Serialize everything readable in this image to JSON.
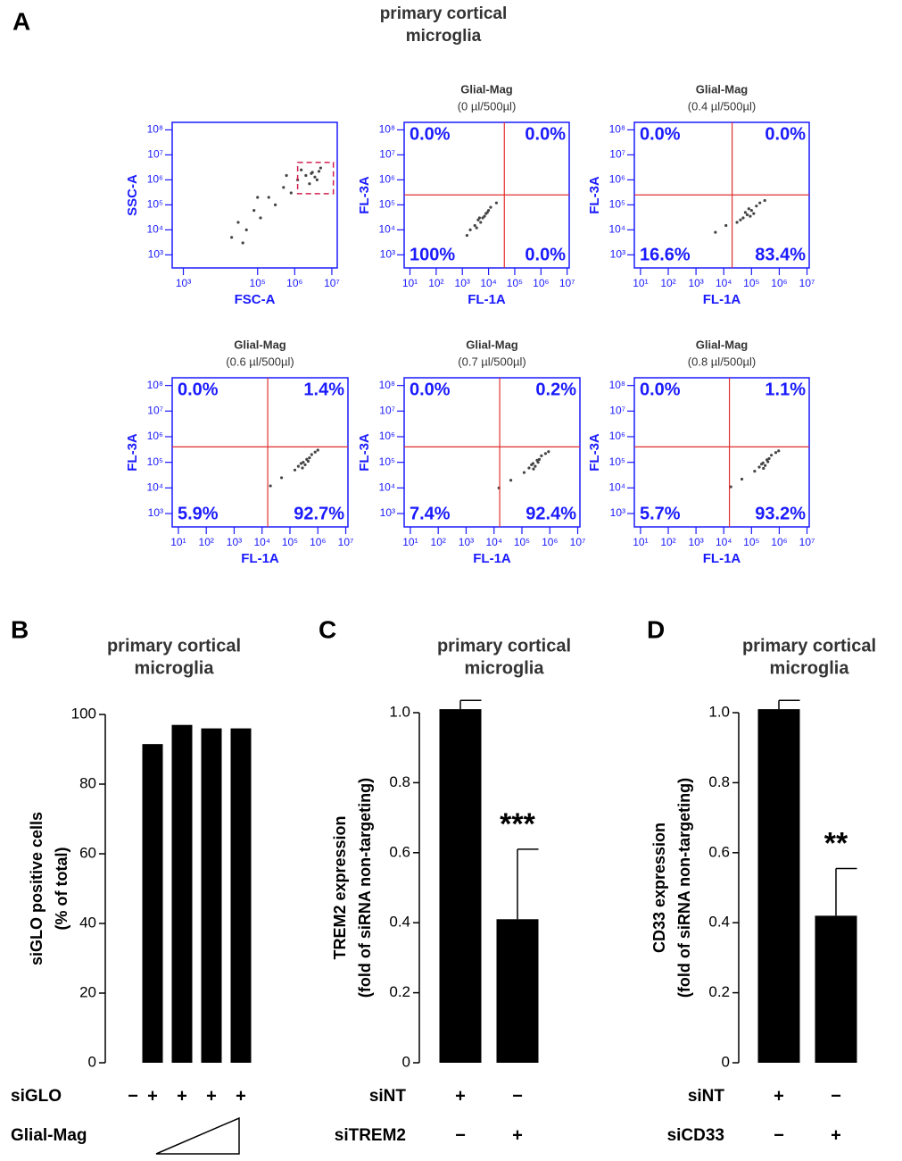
{
  "header": {
    "panel": "A",
    "title": [
      "primary cortical",
      "microglia"
    ]
  },
  "chart_data": [
    {
      "type": "scatter",
      "xlabel": "FSC-A",
      "ylabel": "SSC-A",
      "log": true,
      "xlim": [
        500,
        14000000
      ],
      "ylim": [
        300,
        200000000
      ],
      "xticks": [
        {
          "value": 1000,
          "label": "10³"
        },
        {
          "value": 100000,
          "label": "10⁵"
        },
        {
          "value": 1000000,
          "label": "10⁶"
        },
        {
          "value": 10000000,
          "label": "10⁷"
        }
      ],
      "yticks": [
        {
          "value": 1000,
          "label": "10³"
        },
        {
          "value": 10000,
          "label": "10⁴"
        },
        {
          "value": 100000,
          "label": "10⁵"
        },
        {
          "value": 1000000,
          "label": "10⁶"
        },
        {
          "value": 10000000,
          "label": "10⁷"
        },
        {
          "value": 100000000,
          "label": "10⁸"
        }
      ],
      "gate_rect": {
        "x": [
          1200000,
          11000000
        ],
        "y": [
          280000,
          5000000
        ]
      },
      "x": [
        20000,
        30000,
        50000,
        80000,
        120000,
        200000,
        300000,
        500000,
        800000,
        1200000,
        2000000,
        3000000,
        4000000,
        2500000,
        5000000,
        1500000,
        600000,
        100000,
        3500000,
        2800000,
        4500000,
        40000
      ],
      "y": [
        5000,
        20000,
        10000,
        60000,
        30000,
        200000,
        100000,
        500000,
        300000,
        1000000,
        1500000,
        2000000,
        1000000,
        700000,
        3000000,
        2500000,
        1500000,
        200000,
        1300000,
        1800000,
        2200000,
        3000
      ]
    },
    {
      "type": "scatter",
      "title": [
        "Glial-Mag",
        "(0 µl/500µl)"
      ],
      "xlabel": "FL-1A",
      "ylabel": "FL-3A",
      "log": true,
      "xlim": [
        6,
        12000000
      ],
      "ylim": [
        300,
        200000000
      ],
      "xticks": [
        {
          "value": 10,
          "label": "10¹"
        },
        {
          "value": 100,
          "label": "10²"
        },
        {
          "value": 1000,
          "label": "10³"
        },
        {
          "value": 10000,
          "label": "10⁴"
        },
        {
          "value": 100000,
          "label": "10⁵"
        },
        {
          "value": 1000000,
          "label": "10⁶"
        },
        {
          "value": 10000000,
          "label": "10⁷"
        }
      ],
      "yticks": [
        {
          "value": 1000,
          "label": "10³"
        },
        {
          "value": 10000,
          "label": "10⁴"
        },
        {
          "value": 100000,
          "label": "10⁵"
        },
        {
          "value": 1000000,
          "label": "10⁶"
        },
        {
          "value": 10000000,
          "label": "10⁷"
        },
        {
          "value": 100000000,
          "label": "10⁸"
        }
      ],
      "gate_x": 40000,
      "gate_y": 250000,
      "quadrants": {
        "values": [
          0.0,
          0.0,
          100,
          0.0
        ],
        "value_labels": [
          "0.0%",
          "0.0%",
          "100%",
          "0.0%"
        ]
      },
      "x": [
        2000,
        3000,
        4000,
        6000,
        8000,
        5000,
        10000,
        1500,
        7000,
        12000,
        3500,
        9000,
        4500,
        20000
      ],
      "y": [
        10000,
        15000,
        25000,
        30000,
        45000,
        20000,
        60000,
        6000,
        35000,
        80000,
        12000,
        50000,
        30000,
        120000
      ]
    },
    {
      "type": "scatter",
      "title": [
        "Glial-Mag",
        "(0.4 µl/500µl)"
      ],
      "xlabel": "FL-1A",
      "ylabel": "FL-3A",
      "log": true,
      "xlim": [
        6,
        12000000
      ],
      "ylim": [
        300,
        200000000
      ],
      "xticks": [
        {
          "value": 10,
          "label": "10¹"
        },
        {
          "value": 100,
          "label": "10²"
        },
        {
          "value": 1000,
          "label": "10³"
        },
        {
          "value": 10000,
          "label": "10⁴"
        },
        {
          "value": 100000,
          "label": "10⁵"
        },
        {
          "value": 1000000,
          "label": "10⁶"
        },
        {
          "value": 10000000,
          "label": "10⁷"
        }
      ],
      "yticks": [
        {
          "value": 1000,
          "label": "10³"
        },
        {
          "value": 10000,
          "label": "10⁴"
        },
        {
          "value": 100000,
          "label": "10⁵"
        },
        {
          "value": 1000000,
          "label": "10⁶"
        },
        {
          "value": 10000000,
          "label": "10⁷"
        },
        {
          "value": 100000000,
          "label": "10⁸"
        }
      ],
      "gate_x": 20000,
      "gate_y": 250000,
      "quadrants": {
        "values": [
          0.0,
          0.0,
          16.6,
          83.4
        ],
        "value_labels": [
          "0.0%",
          "0.0%",
          "16.6%",
          "83.4%"
        ]
      },
      "x": [
        30000,
        50000,
        70000,
        100000,
        150000,
        60000,
        40000,
        200000,
        90000,
        12000,
        5000,
        300000,
        80000,
        120000
      ],
      "y": [
        20000,
        30000,
        40000,
        60000,
        90000,
        50000,
        25000,
        120000,
        35000,
        15000,
        8000,
        150000,
        70000,
        45000
      ]
    },
    {
      "type": "scatter",
      "title": [
        "Glial-Mag",
        "(0.6 µl/500µl)"
      ],
      "xlabel": "FL-1A",
      "ylabel": "FL-3A",
      "log": true,
      "xlim": [
        6,
        12000000
      ],
      "ylim": [
        300,
        200000000
      ],
      "xticks": [
        {
          "value": 10,
          "label": "10¹"
        },
        {
          "value": 100,
          "label": "10²"
        },
        {
          "value": 1000,
          "label": "10³"
        },
        {
          "value": 10000,
          "label": "10⁴"
        },
        {
          "value": 100000,
          "label": "10⁵"
        },
        {
          "value": 1000000,
          "label": "10⁶"
        },
        {
          "value": 10000000,
          "label": "10⁷"
        }
      ],
      "yticks": [
        {
          "value": 1000,
          "label": "10³"
        },
        {
          "value": 10000,
          "label": "10⁴"
        },
        {
          "value": 100000,
          "label": "10⁵"
        },
        {
          "value": 1000000,
          "label": "10⁶"
        },
        {
          "value": 10000000,
          "label": "10⁷"
        },
        {
          "value": 100000000,
          "label": "10⁸"
        }
      ],
      "gate_x": 16000,
      "gate_y": 400000,
      "quadrants": {
        "values": [
          0.0,
          1.4,
          5.9,
          92.7
        ],
        "value_labels": [
          "0.0%",
          "1.4%",
          "5.9%",
          "92.7%"
        ]
      },
      "x": [
        150000,
        200000,
        300000,
        400000,
        600000,
        250000,
        350000,
        800000,
        500000,
        50000,
        20000,
        1000000,
        450000,
        280000
      ],
      "y": [
        50000,
        70000,
        100000,
        130000,
        200000,
        90000,
        80000,
        250000,
        150000,
        25000,
        12000,
        300000,
        110000,
        60000
      ]
    },
    {
      "type": "scatter",
      "title": [
        "Glial-Mag",
        "(0.7 µl/500µl)"
      ],
      "xlabel": "FL-1A",
      "ylabel": "FL-3A",
      "log": true,
      "xlim": [
        6,
        12000000
      ],
      "ylim": [
        300,
        200000000
      ],
      "xticks": [
        {
          "value": 10,
          "label": "10¹"
        },
        {
          "value": 100,
          "label": "10²"
        },
        {
          "value": 1000,
          "label": "10³"
        },
        {
          "value": 10000,
          "label": "10⁴"
        },
        {
          "value": 100000,
          "label": "10⁵"
        },
        {
          "value": 1000000,
          "label": "10⁶"
        },
        {
          "value": 10000000,
          "label": "10⁷"
        }
      ],
      "yticks": [
        {
          "value": 1000,
          "label": "10³"
        },
        {
          "value": 10000,
          "label": "10⁴"
        },
        {
          "value": 100000,
          "label": "10⁵"
        },
        {
          "value": 1000000,
          "label": "10⁶"
        },
        {
          "value": 10000000,
          "label": "10⁷"
        },
        {
          "value": 100000000,
          "label": "10⁸"
        }
      ],
      "gate_x": 16000,
      "gate_y": 400000,
      "quadrants": {
        "values": [
          0.0,
          0.2,
          7.4,
          92.4
        ],
        "value_labels": [
          "0.0%",
          "0.2%",
          "7.4%",
          "92.4%"
        ]
      },
      "x": [
        120000,
        180000,
        250000,
        350000,
        500000,
        220000,
        300000,
        700000,
        420000,
        40000,
        15000,
        900000,
        380000,
        260000
      ],
      "y": [
        40000,
        60000,
        90000,
        120000,
        180000,
        80000,
        70000,
        220000,
        130000,
        20000,
        10000,
        260000,
        100000,
        55000
      ]
    },
    {
      "type": "scatter",
      "title": [
        "Glial-Mag",
        "(0.8 µl/500µl)"
      ],
      "xlabel": "FL-1A",
      "ylabel": "FL-3A",
      "log": true,
      "xlim": [
        6,
        12000000
      ],
      "ylim": [
        300,
        200000000
      ],
      "xticks": [
        {
          "value": 10,
          "label": "10¹"
        },
        {
          "value": 100,
          "label": "10²"
        },
        {
          "value": 1000,
          "label": "10³"
        },
        {
          "value": 10000,
          "label": "10⁴"
        },
        {
          "value": 100000,
          "label": "10⁵"
        },
        {
          "value": 1000000,
          "label": "10⁶"
        },
        {
          "value": 10000000,
          "label": "10⁷"
        }
      ],
      "yticks": [
        {
          "value": 1000,
          "label": "10³"
        },
        {
          "value": 10000,
          "label": "10⁴"
        },
        {
          "value": 100000,
          "label": "10⁵"
        },
        {
          "value": 1000000,
          "label": "10⁶"
        },
        {
          "value": 10000000,
          "label": "10⁷"
        },
        {
          "value": 100000000,
          "label": "10⁸"
        }
      ],
      "gate_x": 16000,
      "gate_y": 400000,
      "quadrants": {
        "values": [
          0.0,
          1.1,
          5.7,
          93.2
        ],
        "value_labels": [
          "0.0%",
          "1.1%",
          "5.7%",
          "93.2%"
        ]
      },
      "x": [
        130000,
        190000,
        260000,
        360000,
        520000,
        230000,
        310000,
        750000,
        430000,
        45000,
        18000,
        950000,
        390000,
        270000
      ],
      "y": [
        45000,
        65000,
        95000,
        125000,
        190000,
        85000,
        75000,
        240000,
        140000,
        22000,
        11000,
        280000,
        105000,
        58000
      ]
    },
    {
      "type": "bar",
      "panel": "B",
      "title": [
        "primary cortical",
        "microglia"
      ],
      "ylabel": [
        "siGLO positive cells",
        "(% of total)"
      ],
      "ylim": [
        0,
        100
      ],
      "yticks": [
        0,
        20,
        40,
        60,
        80,
        100
      ],
      "color": "#000000",
      "values": [
        null,
        91.5,
        97,
        96,
        96
      ],
      "conditions": [
        {
          "name": "siGLO",
          "labels": [
            "−",
            "+",
            "+",
            "+",
            "+"
          ]
        },
        {
          "name": "Glial-Mag"
        }
      ]
    },
    {
      "type": "bar",
      "panel": "C",
      "title": [
        "primary cortical",
        "microglia"
      ],
      "ylabel": [
        "TREM2 expression",
        "(fold of siRNA non-targeting)"
      ],
      "ylim": [
        0,
        1
      ],
      "yticks": [
        0,
        0.2,
        0.4,
        0.6,
        0.8,
        {
          "value": 1,
          "label": "1.0"
        }
      ],
      "color": "#000000",
      "values": [
        1.01,
        0.41
      ],
      "errors": [
        0.025,
        0.2
      ],
      "annotations": [
        null,
        "***"
      ],
      "conditions": [
        {
          "name": "siNT",
          "labels": [
            "+",
            "−"
          ]
        },
        {
          "name": "siTREM2",
          "labels": [
            "−",
            "+"
          ]
        }
      ]
    },
    {
      "type": "bar",
      "panel": "D",
      "title": [
        "primary cortical",
        "microglia"
      ],
      "ylabel": [
        "CD33 expression",
        "(fold of siRNA non-targeting)"
      ],
      "ylim": [
        0,
        1
      ],
      "yticks": [
        0,
        0.2,
        0.4,
        0.6,
        0.8,
        {
          "value": 1,
          "label": "1.0"
        }
      ],
      "color": "#000000",
      "values": [
        1.01,
        0.42
      ],
      "errors": [
        0.025,
        0.135
      ],
      "annotations": [
        null,
        "**"
      ],
      "conditions": [
        {
          "name": "siNT",
          "labels": [
            "+",
            "−"
          ]
        },
        {
          "name": "siCD33",
          "labels": [
            "−",
            "+"
          ]
        }
      ]
    }
  ]
}
